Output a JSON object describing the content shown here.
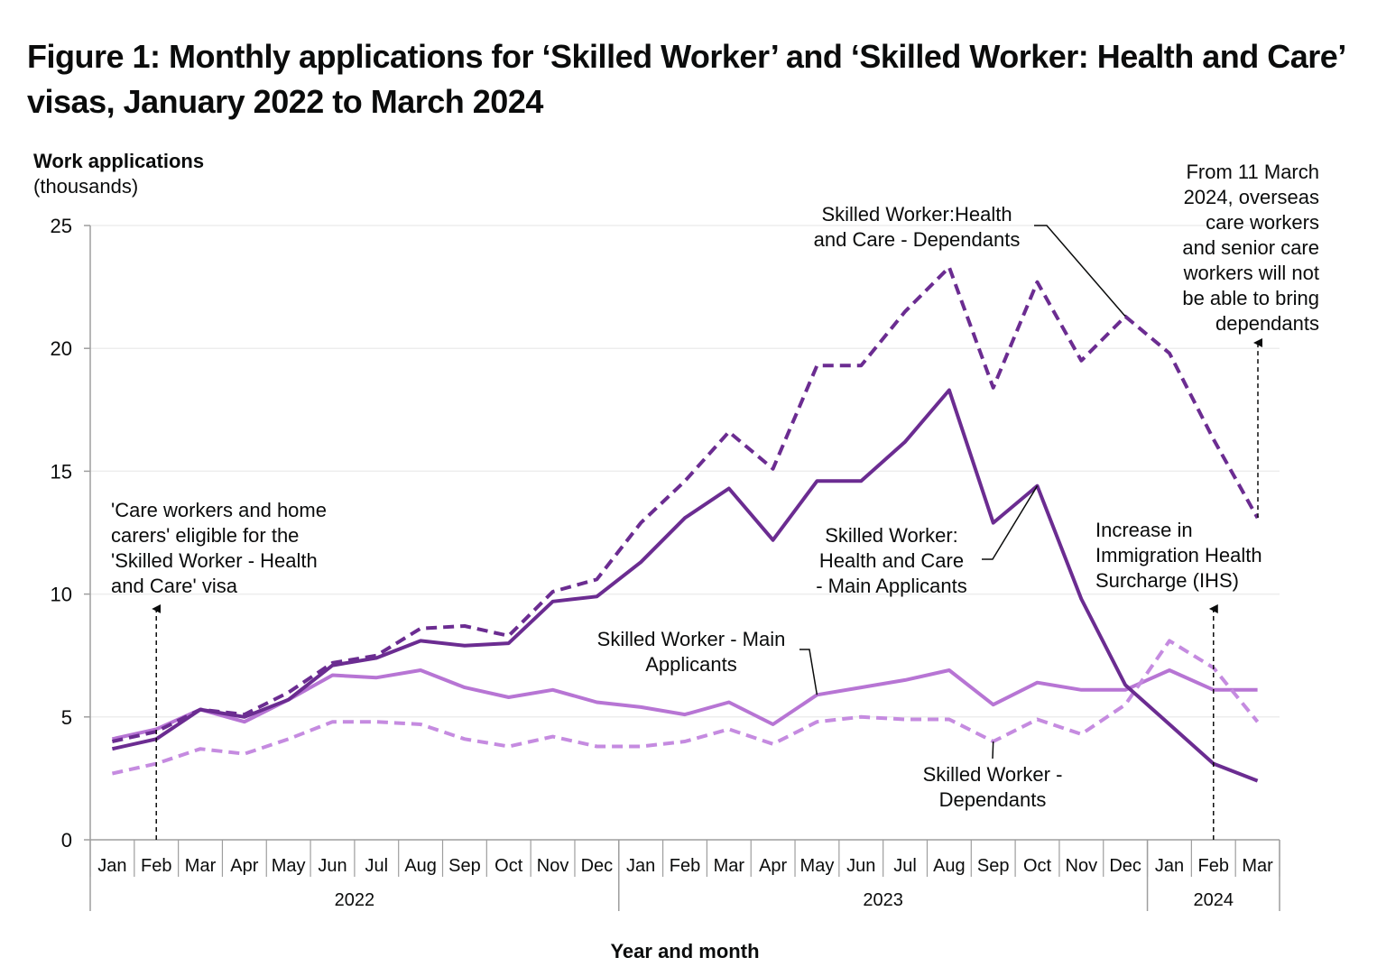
{
  "title": "Figure 1: Monthly applications for ‘Skilled Worker’ and ‘Skilled Worker: Health and Care’ visas, January 2022 to March 2024",
  "chart_data": {
    "type": "line",
    "ylabel": "Work applications",
    "ylabel_units": "(thousands)",
    "xlabel": "Year and month",
    "ylim": [
      0,
      25
    ],
    "yticks": [
      0,
      5,
      10,
      15,
      20,
      25
    ],
    "grid": "horizontal",
    "categories": [
      "Jan",
      "Feb",
      "Mar",
      "Apr",
      "May",
      "Jun",
      "Jul",
      "Aug",
      "Sep",
      "Oct",
      "Nov",
      "Dec",
      "Jan",
      "Feb",
      "Mar",
      "Apr",
      "May",
      "Jun",
      "Jul",
      "Aug",
      "Sep",
      "Oct",
      "Nov",
      "Dec",
      "Jan",
      "Feb",
      "Mar"
    ],
    "years": [
      {
        "label": "2022",
        "start": 0,
        "end": 11
      },
      {
        "label": "2023",
        "start": 12,
        "end": 23
      },
      {
        "label": "2024",
        "start": 24,
        "end": 26
      }
    ],
    "series": [
      {
        "name": "Skilled Worker:Health and Care - Dependants",
        "color": "#6b2c91",
        "style": "dashed",
        "width": 4,
        "values": [
          4.0,
          4.4,
          5.3,
          5.1,
          6.0,
          7.2,
          7.5,
          8.6,
          8.7,
          8.3,
          10.1,
          10.6,
          12.9,
          14.6,
          16.6,
          15.1,
          19.3,
          19.3,
          21.5,
          23.3,
          18.4,
          22.7,
          19.5,
          21.3,
          19.8,
          16.3,
          13.1
        ]
      },
      {
        "name": "Skilled Worker: Health and Care - Main Applicants",
        "color": "#6b2c91",
        "style": "solid",
        "width": 4,
        "values": [
          3.7,
          4.1,
          5.3,
          5.0,
          5.7,
          7.1,
          7.4,
          8.1,
          7.9,
          8.0,
          9.7,
          9.9,
          11.3,
          13.1,
          14.3,
          12.2,
          14.6,
          14.6,
          16.2,
          18.3,
          12.9,
          14.4,
          9.8,
          6.3,
          4.7,
          3.1,
          2.4
        ]
      },
      {
        "name": "Skilled Worker - Main Applicants",
        "color": "#b775d4",
        "style": "solid",
        "width": 4,
        "values": [
          4.1,
          4.5,
          5.3,
          4.8,
          5.7,
          6.7,
          6.6,
          6.9,
          6.2,
          5.8,
          6.1,
          5.6,
          5.4,
          5.1,
          5.6,
          4.7,
          5.9,
          6.2,
          6.5,
          6.9,
          5.5,
          6.4,
          6.1,
          6.1,
          6.9,
          6.1,
          6.1
        ]
      },
      {
        "name": "Skilled Worker - Dependants",
        "color": "#c58be0",
        "style": "dashed",
        "width": 4,
        "values": [
          2.7,
          3.1,
          3.7,
          3.5,
          4.1,
          4.8,
          4.8,
          4.7,
          4.1,
          3.8,
          4.2,
          3.8,
          3.8,
          4.0,
          4.5,
          3.9,
          4.8,
          5.0,
          4.9,
          4.9,
          4.0,
          4.9,
          4.3,
          5.5,
          8.1,
          7.0,
          4.8
        ]
      }
    ],
    "annotations": [
      {
        "text": [
          "'Care workers and home",
          "carers' eligible for the",
          "'Skilled Worker - Health",
          "and Care' visa"
        ],
        "category_index": 1,
        "y": 9.4
      },
      {
        "text": [
          "From 11 March",
          "2024, overseas",
          "care workers",
          "and senior care",
          "workers will not",
          "be able to bring",
          "dependants"
        ],
        "category_index": 26,
        "y": 13.1
      },
      {
        "text": [
          "Increase in",
          "Immigration Health",
          "Surcharge (IHS)"
        ],
        "category_index": 25,
        "y": 9.4
      }
    ],
    "series_labels": [
      {
        "text": [
          "Skilled Worker:Health",
          "and Care - Dependants"
        ]
      },
      {
        "text": [
          "Skilled Worker:",
          "Health and Care",
          "- Main Applicants"
        ]
      },
      {
        "text": [
          "Skilled Worker - Main",
          "Applicants"
        ]
      },
      {
        "text": [
          "Skilled Worker -",
          "Dependants"
        ]
      }
    ]
  }
}
